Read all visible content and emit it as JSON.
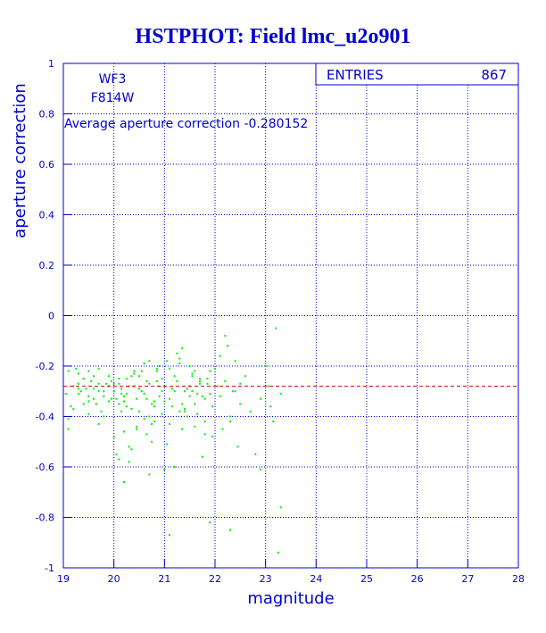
{
  "chart_data": {
    "type": "scatter",
    "title": "HSTPHOT: Field lmc_u2o901",
    "xlabel": "magnitude",
    "ylabel": "aperture correction",
    "xlim": [
      19,
      28
    ],
    "ylim": [
      -1,
      1
    ],
    "x_ticks": [
      "19",
      "20",
      "21",
      "22",
      "23",
      "24",
      "25",
      "26",
      "27",
      "28"
    ],
    "y_ticks": [
      "-1",
      "-0.8",
      "-0.6",
      "-0.4",
      "-0.2",
      "0",
      "0.2",
      "0.4",
      "0.6",
      "0.8",
      "1"
    ],
    "grid": true,
    "annotations": {
      "chip": "WF3",
      "filter": "F814W",
      "average_text": "Average aperture correction -0.280152"
    },
    "stats": {
      "entries_label": "ENTRIES",
      "entries_value": "867"
    },
    "average_line": {
      "y": -0.280152,
      "color": "#cc0000"
    },
    "colors": {
      "points": "#00ee00",
      "axes": "#0000cc",
      "text": "#0000cc"
    },
    "series": [
      {
        "x": [
          19.1,
          19.2,
          19.3,
          19.4,
          19.5,
          19.6,
          19.7,
          19.8,
          19.9,
          19.15,
          19.35,
          19.55,
          19.75,
          19.95,
          19.25,
          19.45,
          19.65,
          19.85,
          19.1,
          19.3,
          19.5,
          19.7,
          19.9,
          19.2,
          19.4,
          19.6,
          19.8,
          19.3,
          19.5,
          19.7,
          19.05,
          19.95,
          19.4,
          19.6,
          19.8,
          19.1,
          19.3,
          19.5,
          19.7,
          19.9,
          20.0,
          20.1,
          20.2,
          20.3,
          20.4,
          20.5,
          20.6,
          20.7,
          20.8,
          20.9,
          20.05,
          20.15,
          20.25,
          20.35,
          20.45,
          20.55,
          20.65,
          20.75,
          20.85,
          20.95,
          20.0,
          20.1,
          20.2,
          20.3,
          20.4,
          20.5,
          20.6,
          20.7,
          20.8,
          20.9,
          20.05,
          20.15,
          20.25,
          20.35,
          20.45,
          20.55,
          20.65,
          20.75,
          20.85,
          20.95,
          20.1,
          20.3,
          20.5,
          20.7,
          20.9,
          20.2,
          20.4,
          20.6,
          20.8,
          20.0,
          20.35,
          20.55,
          20.75,
          20.95,
          20.15,
          20.45,
          20.65,
          20.85,
          20.25,
          20.5,
          21.0,
          21.1,
          21.2,
          21.3,
          21.4,
          21.5,
          21.6,
          21.7,
          21.8,
          21.9,
          21.05,
          21.15,
          21.25,
          21.35,
          21.45,
          21.55,
          21.65,
          21.75,
          21.85,
          21.95,
          21.0,
          21.1,
          21.2,
          21.3,
          21.4,
          21.5,
          21.6,
          21.7,
          21.8,
          21.9,
          21.05,
          21.15,
          21.25,
          21.35,
          21.45,
          21.55,
          21.65,
          21.75,
          21.85,
          21.95,
          21.1,
          21.3,
          21.5,
          21.7,
          21.2,
          21.4,
          21.6,
          21.8,
          21.35,
          21.55,
          22.0,
          22.1,
          22.2,
          22.3,
          22.4,
          22.5,
          22.05,
          22.15,
          22.25,
          22.35,
          22.45,
          22.6,
          22.7,
          22.1,
          22.3,
          22.5,
          22.8,
          22.9,
          22.2,
          22.4,
          23.0,
          23.1,
          23.2,
          23.3,
          23.05,
          23.15,
          20.2,
          20.7,
          21.0,
          21.1,
          21.9,
          22.3,
          22.9,
          23.25,
          23.3,
          20.1
        ],
        "y": [
          -0.22,
          -0.28,
          -0.31,
          -0.25,
          -0.34,
          -0.29,
          -0.27,
          -0.32,
          -0.24,
          -0.36,
          -0.3,
          -0.26,
          -0.38,
          -0.33,
          -0.21,
          -0.29,
          -0.35,
          -0.27,
          -0.41,
          -0.23,
          -0.32,
          -0.3,
          -0.28,
          -0.37,
          -0.25,
          -0.33,
          -0.4,
          -0.29,
          -0.22,
          -0.43,
          -0.31,
          -0.26,
          -0.35,
          -0.24,
          -0.3,
          -0.45,
          -0.27,
          -0.39,
          -0.21,
          -0.34,
          -0.3,
          -0.25,
          -0.34,
          -0.28,
          -0.22,
          -0.38,
          -0.31,
          -0.27,
          -0.42,
          -0.2,
          -0.33,
          -0.29,
          -0.36,
          -0.24,
          -0.45,
          -0.3,
          -0.26,
          -0.35,
          -0.21,
          -0.39,
          -0.48,
          -0.27,
          -0.32,
          -0.52,
          -0.23,
          -0.29,
          -0.41,
          -0.18,
          -0.34,
          -0.28,
          -0.55,
          -0.31,
          -0.25,
          -0.37,
          -0.44,
          -0.22,
          -0.33,
          -0.5,
          -0.26,
          -0.3,
          -0.35,
          -0.58,
          -0.24,
          -0.4,
          -0.32,
          -0.46,
          -0.28,
          -0.19,
          -0.36,
          -0.27,
          -0.53,
          -0.3,
          -0.43,
          -0.25,
          -0.38,
          -0.33,
          -0.47,
          -0.22,
          -0.31,
          -0.29,
          -0.28,
          -0.33,
          -0.24,
          -0.38,
          -0.3,
          -0.2,
          -0.35,
          -0.27,
          -0.42,
          -0.31,
          -0.18,
          -0.36,
          -0.26,
          -0.45,
          -0.29,
          -0.23,
          -0.39,
          -0.32,
          -0.25,
          -0.48,
          -0.34,
          -0.21,
          -0.3,
          -0.17,
          -0.37,
          -0.28,
          -0.44,
          -0.26,
          -0.33,
          -0.22,
          -0.51,
          -0.29,
          -0.15,
          -0.35,
          -0.4,
          -0.24,
          -0.31,
          -0.56,
          -0.27,
          -0.36,
          -0.43,
          -0.19,
          -0.32,
          -0.25,
          -0.6,
          -0.38,
          -0.22,
          -0.47,
          -0.13,
          -0.3,
          -0.21,
          -0.32,
          -0.26,
          -0.4,
          -0.18,
          -0.35,
          -0.28,
          -0.45,
          -0.12,
          -0.3,
          -0.52,
          -0.24,
          -0.38,
          -0.16,
          -0.42,
          -0.27,
          -0.55,
          -0.33,
          -0.08,
          -0.3,
          -0.2,
          -0.36,
          -0.05,
          -0.31,
          -0.28,
          -0.42,
          -0.66,
          -0.63,
          -0.61,
          -0.87,
          -0.82,
          -0.85,
          -0.61,
          -0.94,
          -0.76,
          -0.57
        ]
      }
    ]
  }
}
